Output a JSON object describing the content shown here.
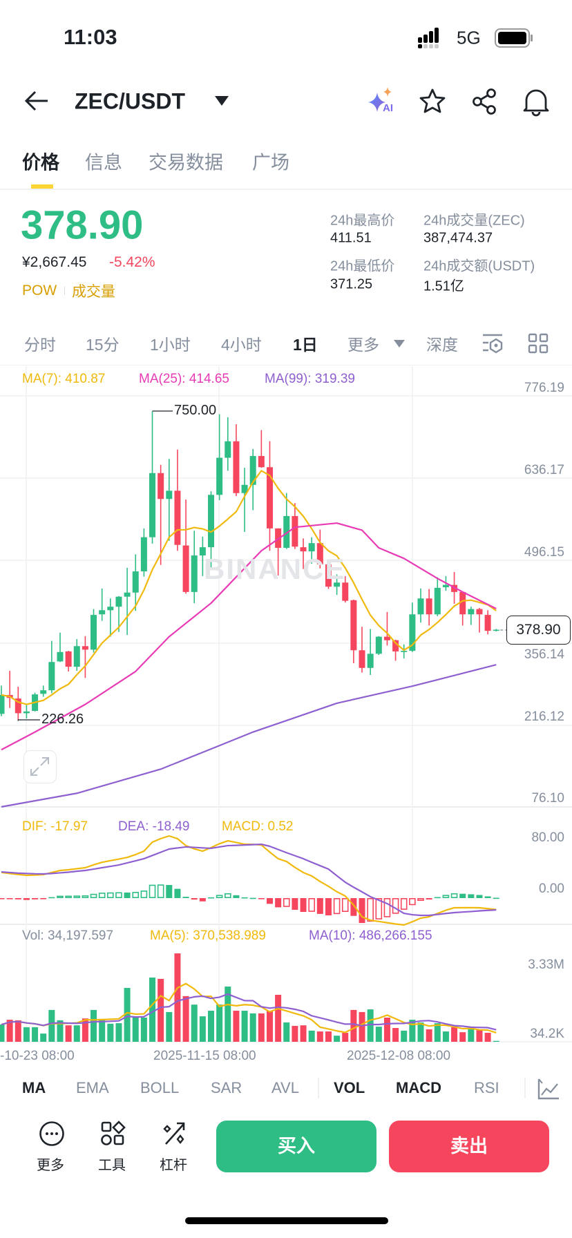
{
  "status_bar": {
    "time": "11:03",
    "network": "5G"
  },
  "header": {
    "pair": "ZEC/USDT",
    "ai_badge": "AI"
  },
  "tabs": [
    {
      "label": "价格",
      "active": true
    },
    {
      "label": "信息"
    },
    {
      "label": "交易数据"
    },
    {
      "label": "广场"
    }
  ],
  "ticker": {
    "price": "378.90",
    "cny": "¥2,667.45",
    "change": "-5.42%",
    "tag1": "POW",
    "tag2": "成交量",
    "stats": [
      {
        "label": "24h最高价",
        "value": "411.51"
      },
      {
        "label": "24h成交量(ZEC)",
        "value": "387,474.37"
      },
      {
        "label": "24h最低价",
        "value": "371.25"
      },
      {
        "label": "24h成交额(USDT)",
        "value": "1.51亿"
      }
    ]
  },
  "timeframes": [
    {
      "label": "分时"
    },
    {
      "label": "15分"
    },
    {
      "label": "1小时"
    },
    {
      "label": "4小时"
    },
    {
      "label": "1日",
      "active": true
    },
    {
      "label": "更多"
    },
    {
      "label": "深度"
    }
  ],
  "legend": {
    "ma7": "MA(7): 410.87",
    "ma25": "MA(25): 414.65",
    "ma99": "MA(99): 319.39",
    "dif": "DIF: -17.97",
    "dea": "DEA: -18.49",
    "macd": "MACD: 0.52",
    "vol": "Vol: 34,197.597",
    "vma5": "MA(5): 370,538.989",
    "vma10": "MA(10): 486,266.155"
  },
  "watermark": "BINANCE",
  "colors": {
    "up": "#2EBD85",
    "down": "#F6465D",
    "ma7": "#F0B90B",
    "ma25": "#E83AB4",
    "ma99": "#8E5FD0",
    "accent": "#FCD535"
  },
  "chart_data": {
    "type": "candlestick",
    "price_axis": {
      "labels": [
        "776.19",
        "636.17",
        "496.15",
        "356.14",
        "216.12",
        "76.10"
      ],
      "range": [
        76.1,
        776.19
      ]
    },
    "high_label": "750.00",
    "low_label": "226.26",
    "high_index": 18,
    "low_index": 2,
    "current_price_label": "378.90",
    "x_labels": [
      {
        "label": "-10-23 08:00",
        "index": 3
      },
      {
        "label": "2025-11-15 08:00",
        "index": 26
      },
      {
        "label": "2025-12-08 08:00",
        "index": 49
      }
    ],
    "ohlc": [
      [
        236,
        284,
        232,
        268
      ],
      [
        268,
        309,
        246,
        263
      ],
      [
        262,
        282,
        226.26,
        237
      ],
      [
        237,
        253,
        228,
        240
      ],
      [
        241,
        272,
        240,
        269
      ],
      [
        270,
        284,
        265,
        276
      ],
      [
        276,
        360,
        271,
        324
      ],
      [
        325,
        374,
        324,
        341
      ],
      [
        342,
        343,
        308,
        316
      ],
      [
        316,
        363,
        309,
        351
      ],
      [
        351,
        368,
        297,
        345
      ],
      [
        345,
        414,
        340,
        404
      ],
      [
        405,
        449,
        394,
        412
      ],
      [
        412,
        432,
        367,
        418
      ],
      [
        418,
        436,
        375,
        435
      ],
      [
        435,
        484,
        370,
        442
      ],
      [
        442,
        507,
        411,
        478
      ],
      [
        478,
        551,
        469,
        536
      ],
      [
        536,
        750,
        525,
        645
      ],
      [
        645,
        659,
        489,
        601
      ],
      [
        601,
        669,
        530,
        615
      ],
      [
        615,
        685,
        513,
        523
      ],
      [
        522,
        600,
        440,
        443
      ],
      [
        443,
        547,
        424,
        505
      ],
      [
        505,
        537,
        470,
        519
      ],
      [
        519,
        614,
        484,
        608
      ],
      [
        608,
        745,
        599,
        671
      ],
      [
        671,
        740,
        649,
        699
      ],
      [
        699,
        728,
        606,
        611
      ],
      [
        611,
        654,
        545,
        625
      ],
      [
        625,
        686,
        582,
        674
      ],
      [
        674,
        718,
        654,
        655
      ],
      [
        655,
        699,
        513,
        551
      ],
      [
        551,
        551,
        471,
        518
      ],
      [
        518,
        611,
        516,
        572
      ],
      [
        572,
        594,
        516,
        520
      ],
      [
        519,
        534,
        482,
        512
      ],
      [
        512,
        536,
        491,
        526
      ],
      [
        526,
        549,
        483,
        490
      ],
      [
        490,
        490,
        448,
        452
      ],
      [
        452,
        473,
        438,
        459
      ],
      [
        459,
        470,
        425,
        428
      ],
      [
        429,
        430,
        322,
        344
      ],
      [
        344,
        384,
        306,
        314
      ],
      [
        314,
        380,
        302,
        338
      ],
      [
        338,
        368,
        336,
        367
      ],
      [
        367,
        409,
        352,
        361
      ],
      [
        361,
        362,
        326,
        342
      ],
      [
        341,
        354,
        330,
        343
      ],
      [
        343,
        425,
        341,
        405
      ],
      [
        405,
        449,
        391,
        432
      ],
      [
        432,
        448,
        386,
        405
      ],
      [
        405,
        468,
        402,
        450
      ],
      [
        451,
        470,
        445,
        455
      ],
      [
        455,
        477,
        423,
        443
      ],
      [
        443,
        444,
        386,
        405
      ],
      [
        405,
        418,
        387,
        414
      ],
      [
        414,
        416,
        374,
        405
      ],
      [
        404,
        412,
        371,
        377
      ],
      [
        377,
        380,
        376,
        378.9
      ]
    ],
    "ma25_points": [
      [
        0,
        175
      ],
      [
        4,
        205
      ],
      [
        10,
        252
      ],
      [
        16,
        308
      ],
      [
        20,
        367
      ],
      [
        25,
        424
      ],
      [
        31,
        513
      ],
      [
        35,
        553
      ],
      [
        40,
        560
      ],
      [
        43,
        548
      ],
      [
        45,
        518
      ],
      [
        48,
        500
      ],
      [
        50,
        483
      ],
      [
        52,
        466
      ],
      [
        55,
        443
      ],
      [
        59,
        414.65
      ]
    ],
    "ma99_points": [
      [
        0,
        78
      ],
      [
        9,
        101
      ],
      [
        19,
        142
      ],
      [
        26,
        182
      ],
      [
        30,
        205
      ],
      [
        40,
        254
      ],
      [
        49,
        283
      ],
      [
        59,
        319.39
      ]
    ],
    "macd_axis": {
      "labels": [
        "80.00",
        "0.00"
      ]
    },
    "dif": [
      40,
      38.5,
      37,
      35.6,
      36,
      36.7,
      40,
      43.2,
      44.3,
      46,
      47.5,
      52,
      56,
      58.5,
      61,
      63.7,
      68,
      73.4,
      87.5,
      93,
      97.2,
      92.9,
      82,
      77,
      73.4,
      79,
      85,
      89.6,
      87,
      84.2,
      84,
      83,
      72,
      61.6,
      57.2,
      48,
      40,
      34.6,
      26,
      18.4,
      10,
      3.2,
      -10.8,
      -29.2,
      -34.6,
      -36.5,
      -38.5,
      -40.5,
      -42,
      -37,
      -31.3,
      -29.2,
      -24,
      -19,
      -15.1,
      -15,
      -15,
      -15.1,
      -16.5,
      -17.97
    ],
    "dea": [
      41,
      40,
      39,
      38.5,
      38,
      37.8,
      38.5,
      39.5,
      40.5,
      42,
      43.2,
      45.3,
      47.5,
      49.6,
      51.8,
      55,
      58.3,
      61.6,
      66.6,
      71.7,
      76.7,
      78.4,
      80,
      79.3,
      78.5,
      77.8,
      80,
      82,
      82.5,
      83,
      83.6,
      84.2,
      81,
      76,
      71,
      66.3,
      61.6,
      56,
      50.7,
      45.4,
      35,
      24.8,
      17,
      9.7,
      2.2,
      -3.2,
      -8.6,
      -16,
      -23.8,
      -26,
      -27,
      -27,
      -25.6,
      -24,
      -22.7,
      -21.8,
      -21,
      -20,
      -19.2,
      -18.49
    ],
    "volume_axis": {
      "labels": [
        "3.33M",
        "34.2K"
      ]
    },
    "volume_millions": [
      0.65,
      0.83,
      0.81,
      0.55,
      0.55,
      0.31,
      1.2,
      0.81,
      0.62,
      0.62,
      0.88,
      1.2,
      0.86,
      0.68,
      0.7,
      2.03,
      0.94,
      0.91,
      2.42,
      2.37,
      1.12,
      3.33,
      1.72,
      1.4,
      0.96,
      1.17,
      1.4,
      2.08,
      1.17,
      1.17,
      1.07,
      1.07,
      1.17,
      1.77,
      0.73,
      0.6,
      0.62,
      0.42,
      0.39,
      0.39,
      0.23,
      0.34,
      1.2,
      1.12,
      1.22,
      0.57,
      0.91,
      0.52,
      0.42,
      0.83,
      0.73,
      0.47,
      0.7,
      0.39,
      0.55,
      0.36,
      0.52,
      0.44,
      0.34,
      0.034
    ]
  },
  "indicators": [
    {
      "label": "MA",
      "active": true
    },
    {
      "label": "EMA"
    },
    {
      "label": "BOLL"
    },
    {
      "label": "SAR"
    },
    {
      "label": "AVL"
    },
    {
      "label": "VOL",
      "active": true
    },
    {
      "label": "MACD",
      "active": true
    },
    {
      "label": "RSI"
    }
  ],
  "bottom": {
    "more": "更多",
    "tools": "工具",
    "leverage": "杠杆",
    "buy": "买入",
    "sell": "卖出"
  }
}
